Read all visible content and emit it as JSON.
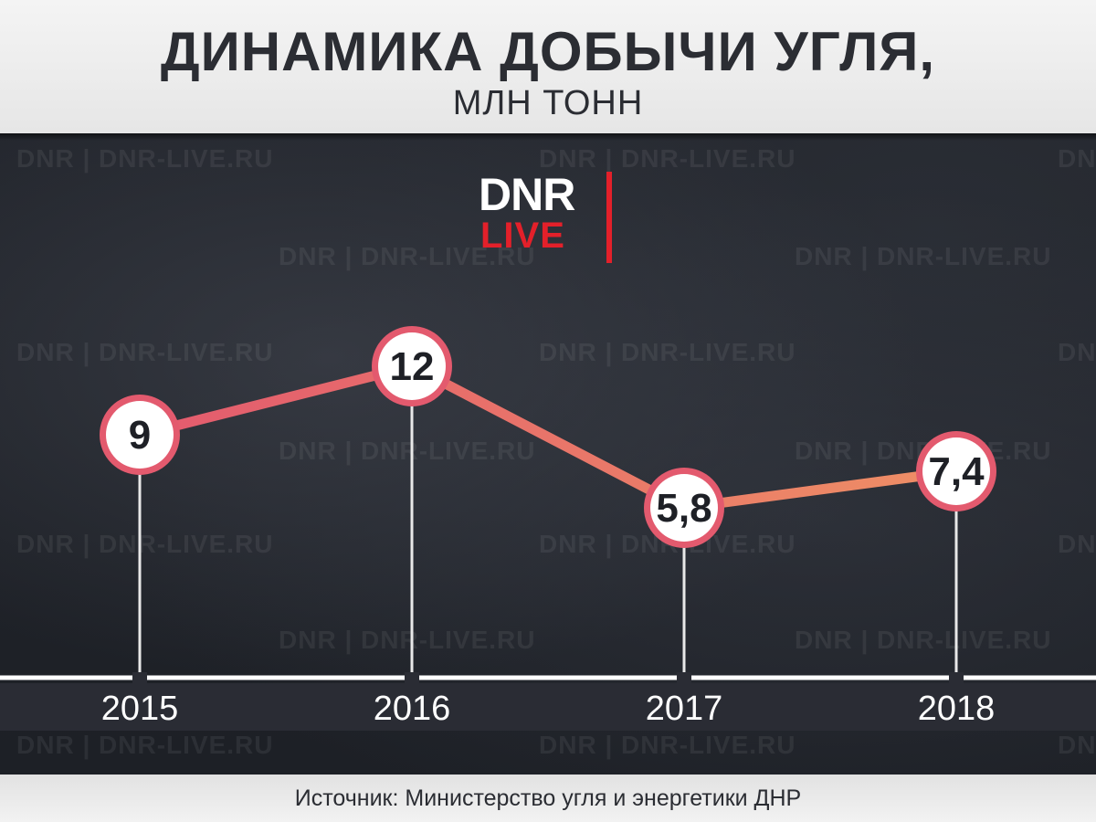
{
  "header": {
    "title": "ДИНАМИКА ДОБЫЧИ УГЛЯ,",
    "subtitle": "МЛН ТОНН"
  },
  "logo": {
    "top": "DNR",
    "bottom": "LIVE"
  },
  "watermark_text": "DNR | DNR-LIVE.RU",
  "colors": {
    "line_start": "#e35a6e",
    "line_end": "#ee8f65",
    "marker_fill": "#ffffff",
    "marker_ring": "#e35a6e",
    "header_bg": "#eeeeee",
    "brand_red": "#e3202a",
    "axis_line": "#ffffff"
  },
  "chart_data": {
    "type": "line",
    "categories": [
      "2015",
      "2016",
      "2017",
      "2018"
    ],
    "values": [
      9,
      12,
      5.8,
      7.4
    ],
    "value_labels": [
      "9",
      "12",
      "5,8",
      "7,4"
    ],
    "title": "ДИНАМИКА ДОБЫЧИ УГЛЯ,",
    "subtitle": "МЛН ТОНН",
    "xlabel": "",
    "ylabel": "",
    "grid": false,
    "legend": "none"
  },
  "footer": {
    "source": "Источник: Министерство угля и энергетики ДНР"
  }
}
